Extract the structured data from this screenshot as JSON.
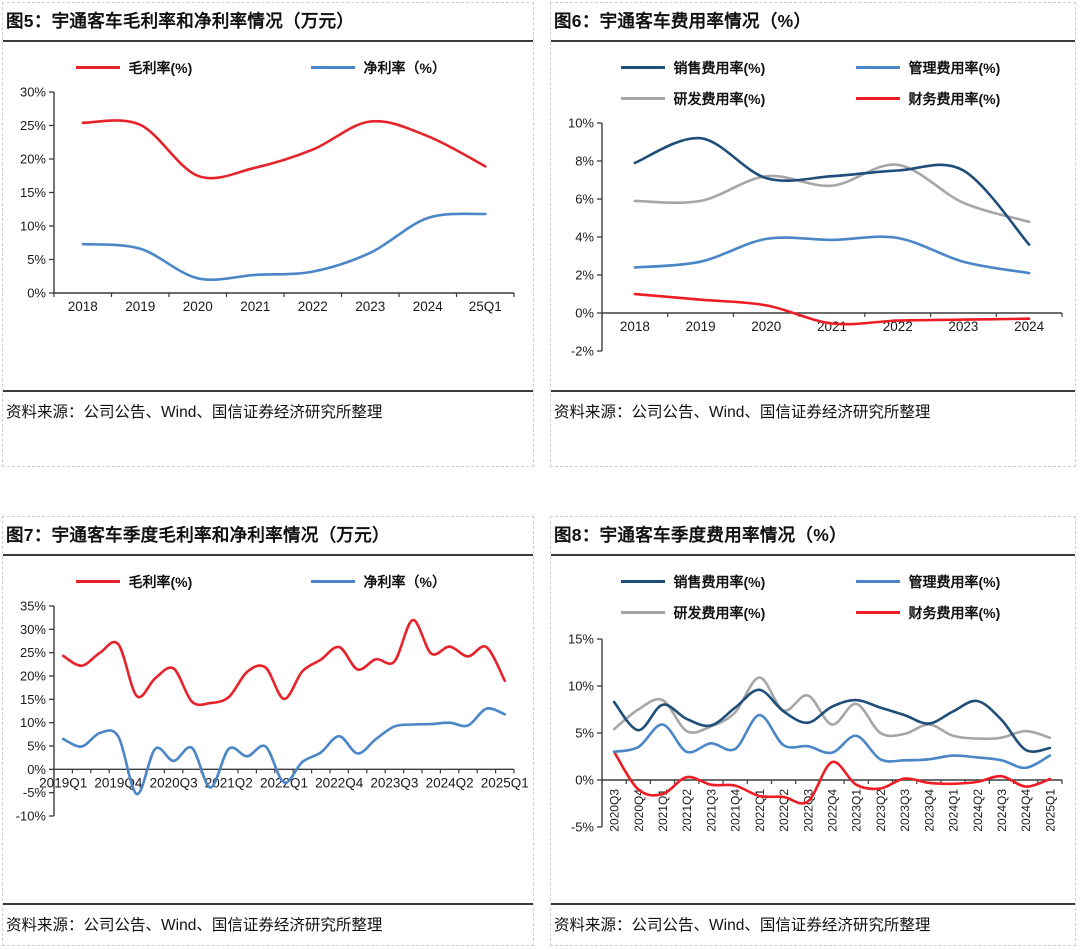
{
  "accent_colors": {
    "gross_red": "#e6232a",
    "net_blue": "#4a86c8",
    "sales_navy": "#1f4e79",
    "admin_blue": "#4a86c8",
    "rd_gray": "#a6a6a6",
    "finance_red": "#ee1c24"
  },
  "chart_data": [
    {
      "id": "fig5",
      "type": "line",
      "title": "图5：宇通客车毛利率和净利率情况（万元）",
      "source": "资料来源：公司公告、Wind、国信证券经济研究所整理",
      "x_labels": [
        "2018",
        "2019",
        "2020",
        "2021",
        "2022",
        "2023",
        "2024",
        "25Q1"
      ],
      "label_every": 1,
      "rotate_x_labels": false,
      "ylim": [
        0,
        30
      ],
      "yticks": [
        0,
        5,
        10,
        15,
        20,
        25,
        30
      ],
      "grid": false,
      "legend_position": "top",
      "series": [
        {
          "name": "毛利率(%)",
          "color": "#e6232a",
          "values": [
            25.4,
            25.1,
            17.5,
            18.7,
            21.4,
            25.6,
            23.4,
            18.9
          ]
        },
        {
          "name": "净利率（%）",
          "color": "#4a86c8",
          "values": [
            7.3,
            6.6,
            2.2,
            2.7,
            3.2,
            6.0,
            11.2,
            11.8
          ]
        }
      ]
    },
    {
      "id": "fig6",
      "type": "line",
      "title": "图6：宇通客车费用率情况（%）",
      "source": "资料来源：公司公告、Wind、国信证券经济研究所整理",
      "x_labels": [
        "2018",
        "2019",
        "2020",
        "2021",
        "2022",
        "2023",
        "2024"
      ],
      "label_every": 1,
      "rotate_x_labels": false,
      "ylim": [
        -2,
        10
      ],
      "yticks": [
        -2,
        0,
        2,
        4,
        6,
        8,
        10
      ],
      "grid": false,
      "legend_position": "top",
      "series": [
        {
          "name": "销售费用率(%)",
          "color": "#1f4e79",
          "values": [
            7.9,
            9.2,
            7.1,
            7.2,
            7.5,
            7.5,
            3.6
          ]
        },
        {
          "name": "管理费用率(%)",
          "color": "#4a86c8",
          "values": [
            2.4,
            2.7,
            3.9,
            3.85,
            3.95,
            2.7,
            2.1
          ]
        },
        {
          "name": "研发费用率(%)",
          "color": "#a6a6a6",
          "values": [
            5.9,
            5.9,
            7.2,
            6.7,
            7.8,
            5.8,
            4.8
          ]
        },
        {
          "name": "财务费用率(%)",
          "color": "#ee1c24",
          "values": [
            1.0,
            0.7,
            0.4,
            -0.55,
            -0.4,
            -0.35,
            -0.3
          ]
        }
      ]
    },
    {
      "id": "fig7",
      "type": "line",
      "title": "图7：宇通客车季度毛利率和净利率情况（万元）",
      "source": "资料来源：公司公告、Wind、国信证券经济研究所整理",
      "x_labels": [
        "2019Q1",
        "2019Q2",
        "2019Q3",
        "2019Q4",
        "2020Q1",
        "2020Q2",
        "2020Q3",
        "2020Q4",
        "2021Q1",
        "2021Q2",
        "2021Q3",
        "2021Q4",
        "2022Q1",
        "2022Q2",
        "2022Q3",
        "2022Q4",
        "2023Q1",
        "2023Q2",
        "2023Q3",
        "2023Q4",
        "2024Q1",
        "2024Q2",
        "2024Q3",
        "2024Q4",
        "2025Q1"
      ],
      "label_every": 3,
      "rotate_x_labels": false,
      "ylim": [
        -10,
        35
      ],
      "yticks": [
        -10,
        -5,
        0,
        5,
        10,
        15,
        20,
        25,
        30,
        35
      ],
      "grid": false,
      "legend_position": "top",
      "series": [
        {
          "name": "毛利率(%)",
          "color": "#e6232a",
          "values": [
            24.3,
            22.2,
            25.0,
            26.8,
            15.7,
            19.5,
            21.6,
            14.5,
            14.2,
            15.5,
            20.9,
            21.8,
            15.1,
            21.0,
            23.5,
            26.2,
            21.4,
            23.6,
            23.1,
            32.0,
            24.8,
            26.3,
            24.2,
            26.2,
            19.0
          ]
        },
        {
          "name": "净利率（%）",
          "color": "#4a86c8",
          "values": [
            6.5,
            4.9,
            7.8,
            7.0,
            -5.3,
            4.4,
            1.8,
            4.6,
            -3.9,
            4.4,
            2.8,
            4.9,
            -2.8,
            1.6,
            3.6,
            7.1,
            3.4,
            6.5,
            9.2,
            9.6,
            9.7,
            10.0,
            9.4,
            13.0,
            11.8
          ]
        }
      ]
    },
    {
      "id": "fig8",
      "type": "line",
      "title": "图8：宇通客车季度费用率情况（%）",
      "source": "资料来源：公司公告、Wind、国信证券经济研究所整理",
      "x_labels": [
        "2020Q3",
        "2020Q4",
        "2021Q1",
        "2021Q2",
        "2021Q3",
        "2021Q4",
        "2022Q1",
        "2022Q2",
        "2022Q3",
        "2022Q4",
        "2023Q1",
        "2023Q2",
        "2023Q3",
        "2023Q4",
        "2024Q1",
        "2024Q2",
        "2024Q3",
        "2024Q4",
        "2025Q1"
      ],
      "label_every": 1,
      "rotate_x_labels": true,
      "ylim": [
        -5,
        15
      ],
      "yticks": [
        -5,
        0,
        5,
        10,
        15
      ],
      "grid": false,
      "legend_position": "top",
      "series": [
        {
          "name": "销售费用率(%)",
          "color": "#1f4e79",
          "values": [
            8.3,
            5.3,
            8.0,
            6.5,
            5.8,
            7.7,
            9.6,
            7.3,
            6.1,
            7.8,
            8.5,
            7.7,
            6.9,
            6.0,
            7.3,
            8.4,
            6.4,
            3.2,
            3.4
          ]
        },
        {
          "name": "管理费用率(%)",
          "color": "#4a86c8",
          "values": [
            3.0,
            3.5,
            5.9,
            3.0,
            3.9,
            3.3,
            6.9,
            3.7,
            3.6,
            2.9,
            4.7,
            2.2,
            2.1,
            2.2,
            2.6,
            2.4,
            2.1,
            1.3,
            2.6
          ]
        },
        {
          "name": "研发费用率(%)",
          "color": "#a6a6a6",
          "values": [
            5.4,
            7.5,
            8.5,
            5.2,
            5.7,
            7.2,
            10.9,
            7.4,
            9.0,
            5.9,
            8.1,
            5.0,
            4.9,
            5.9,
            4.7,
            4.4,
            4.5,
            5.2,
            4.5
          ]
        },
        {
          "name": "财务费用率(%)",
          "color": "#ee1c24",
          "values": [
            3.0,
            -1.0,
            -1.5,
            0.3,
            -0.5,
            -0.6,
            -1.7,
            -1.8,
            -2.3,
            1.9,
            -0.5,
            -0.9,
            0.15,
            -0.3,
            -0.4,
            -0.2,
            0.4,
            -0.7,
            0.1
          ]
        }
      ]
    }
  ]
}
